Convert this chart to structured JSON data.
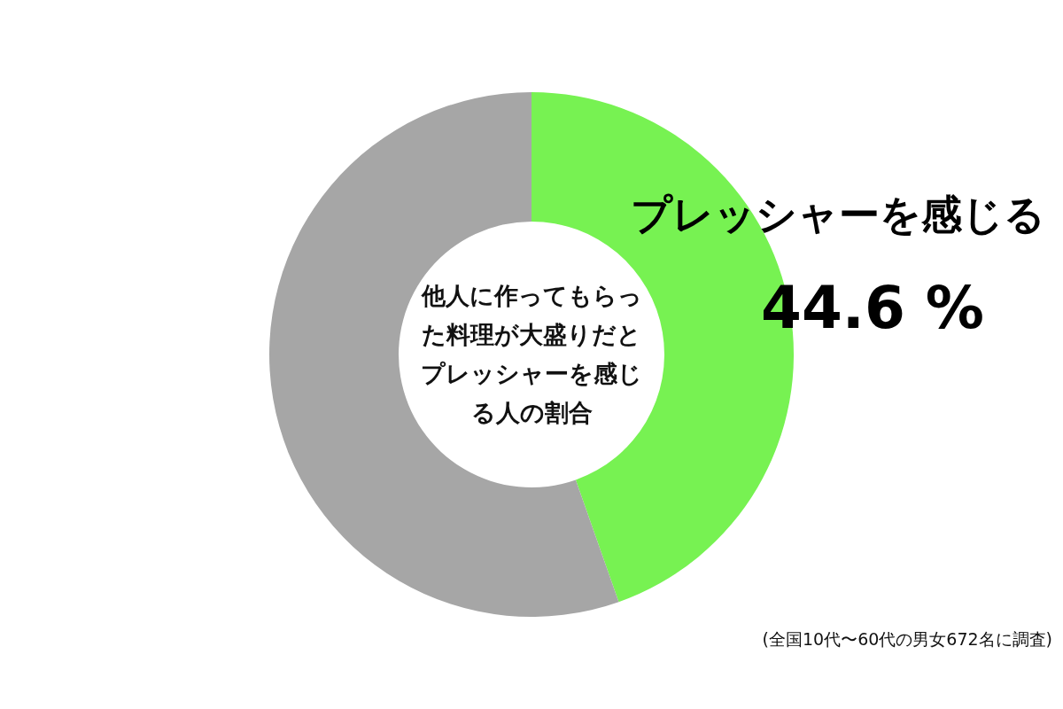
{
  "chart_data": {
    "type": "donut",
    "title": "他人に作ってもらった料理が大盛りだとプレッシャーを感じる人の割合",
    "categories": [
      "プレッシャーを感じる",
      null
    ],
    "values": [
      44.6,
      55.4
    ],
    "colors": [
      "#77f252",
      "#a6a6a6"
    ],
    "value_labels": [
      "44.6 %",
      null
    ],
    "annotations": [
      "(全国10代〜60代の男女672名に調査)"
    ]
  }
}
